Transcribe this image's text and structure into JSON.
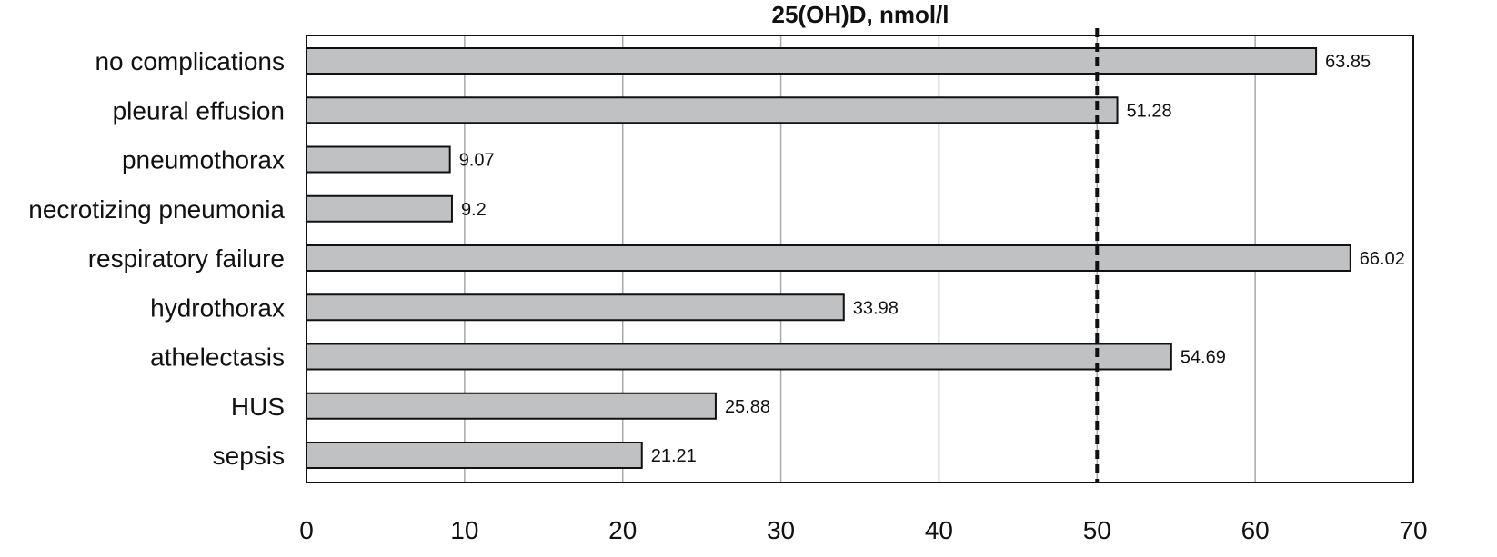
{
  "chart_data": {
    "type": "bar",
    "orientation": "horizontal",
    "title": "25(OH)D, nmol/l",
    "xlabel": "",
    "ylabel": "",
    "categories": [
      "no complications",
      "pleural effusion",
      "pneumothorax",
      "necrotizing pneumonia",
      "respiratory failure",
      "hydrothorax",
      "athelectasis",
      "HUS",
      "sepsis"
    ],
    "values": [
      63.85,
      51.28,
      9.07,
      9.2,
      66.02,
      33.98,
      54.69,
      25.88,
      21.21
    ],
    "value_labels": [
      "63.85",
      "51.28",
      "9.07",
      "9.2",
      "66.02",
      "33.98",
      "54.69",
      "25.88",
      "21.21"
    ],
    "xlim": [
      0,
      70
    ],
    "x_ticks": [
      0,
      10,
      20,
      30,
      40,
      50,
      60,
      70
    ],
    "x_tick_labels": [
      "0",
      "10",
      "20",
      "30",
      "40",
      "50",
      "60",
      "70"
    ],
    "reference_line": 50,
    "grid": "vertical",
    "legend": "none",
    "colors": {
      "bar_fill": "#c0c1c3",
      "bar_stroke": "#111111",
      "grid": "#a8a8a8",
      "reference_line": "#111111",
      "frame": "#111111",
      "text": "#111111"
    }
  }
}
